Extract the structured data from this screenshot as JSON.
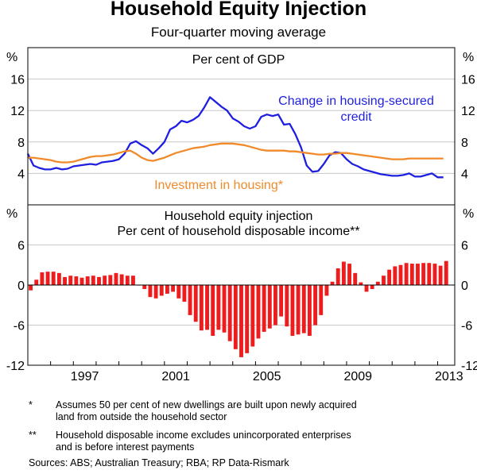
{
  "title": "Household Equity Injection",
  "subtitle": "Four-quarter moving average",
  "chart_data": [
    {
      "type": "line",
      "panel_title": "Per cent of GDP",
      "unit_label": "%",
      "ylim": [
        0,
        20
      ],
      "yticks": [
        4,
        8,
        12,
        16
      ],
      "x_range": [
        1995.0,
        2013.75
      ],
      "series": [
        {
          "name": "Change in housing-secured credit",
          "label_lines": [
            "Change in housing-secured",
            "credit"
          ],
          "color": "#1f1fe0",
          "x": [
            1995.0,
            1995.25,
            1995.5,
            1995.75,
            1996.0,
            1996.25,
            1996.5,
            1996.75,
            1997.0,
            1997.25,
            1997.5,
            1997.75,
            1998.0,
            1998.25,
            1998.5,
            1998.75,
            1999.0,
            1999.25,
            1999.5,
            1999.75,
            2000.0,
            2000.25,
            2000.5,
            2000.75,
            2001.0,
            2001.25,
            2001.5,
            2001.75,
            2002.0,
            2002.25,
            2002.5,
            2002.75,
            2003.0,
            2003.25,
            2003.5,
            2003.75,
            2004.0,
            2004.25,
            2004.5,
            2004.75,
            2005.0,
            2005.25,
            2005.5,
            2005.75,
            2006.0,
            2006.25,
            2006.5,
            2006.75,
            2007.0,
            2007.25,
            2007.5,
            2007.75,
            2008.0,
            2008.25,
            2008.5,
            2008.75,
            2009.0,
            2009.25,
            2009.5,
            2009.75,
            2010.0,
            2010.25,
            2010.5,
            2010.75,
            2011.0,
            2011.25,
            2011.5,
            2011.75,
            2012.0,
            2012.25,
            2012.5,
            2012.75,
            2013.0,
            2013.25
          ],
          "values": [
            6.5,
            5.0,
            4.7,
            4.5,
            4.5,
            4.7,
            4.5,
            4.6,
            4.9,
            5.0,
            5.1,
            5.2,
            5.1,
            5.4,
            5.5,
            5.6,
            5.8,
            6.5,
            7.8,
            8.1,
            7.6,
            7.2,
            6.5,
            7.2,
            8.0,
            9.6,
            10.0,
            10.7,
            10.5,
            10.8,
            11.3,
            12.4,
            13.7,
            13.1,
            12.5,
            12.0,
            11.0,
            10.6,
            10.0,
            9.7,
            10.0,
            11.2,
            11.5,
            11.3,
            11.5,
            10.2,
            10.3,
            9.0,
            7.3,
            5.0,
            4.2,
            4.3,
            5.2,
            6.3,
            6.7,
            6.6,
            5.8,
            5.2,
            4.9,
            4.5,
            4.3,
            4.1,
            3.9,
            3.8,
            3.7,
            3.7,
            3.8,
            4.0,
            3.6,
            3.6,
            3.8,
            4.0,
            3.5,
            3.5
          ]
        },
        {
          "name": "Investment in housing*",
          "label_lines": [
            "Investment in housing*"
          ],
          "color": "#f08a2a",
          "x": [
            1995.0,
            1995.25,
            1995.5,
            1995.75,
            1996.0,
            1996.25,
            1996.5,
            1996.75,
            1997.0,
            1997.25,
            1997.5,
            1997.75,
            1998.0,
            1998.25,
            1998.5,
            1998.75,
            1999.0,
            1999.25,
            1999.5,
            1999.75,
            2000.0,
            2000.25,
            2000.5,
            2000.75,
            2001.0,
            2001.25,
            2001.5,
            2001.75,
            2002.0,
            2002.25,
            2002.5,
            2002.75,
            2003.0,
            2003.25,
            2003.5,
            2003.75,
            2004.0,
            2004.25,
            2004.5,
            2004.75,
            2005.0,
            2005.25,
            2005.5,
            2005.75,
            2006.0,
            2006.25,
            2006.5,
            2006.75,
            2007.0,
            2007.25,
            2007.5,
            2007.75,
            2008.0,
            2008.25,
            2008.5,
            2008.75,
            2009.0,
            2009.25,
            2009.5,
            2009.75,
            2010.0,
            2010.25,
            2010.5,
            2010.75,
            2011.0,
            2011.25,
            2011.5,
            2011.75,
            2012.0,
            2012.25,
            2012.5,
            2012.75,
            2013.0,
            2013.25
          ],
          "values": [
            6.0,
            6.0,
            5.9,
            5.8,
            5.7,
            5.5,
            5.4,
            5.4,
            5.5,
            5.7,
            5.9,
            6.1,
            6.2,
            6.2,
            6.3,
            6.4,
            6.6,
            6.8,
            6.9,
            6.5,
            6.0,
            5.7,
            5.6,
            5.8,
            6.0,
            6.3,
            6.6,
            6.8,
            7.0,
            7.2,
            7.3,
            7.4,
            7.6,
            7.7,
            7.8,
            7.8,
            7.8,
            7.7,
            7.6,
            7.4,
            7.2,
            7.0,
            6.9,
            6.9,
            6.9,
            6.9,
            6.8,
            6.8,
            6.7,
            6.6,
            6.5,
            6.4,
            6.4,
            6.5,
            6.5,
            6.6,
            6.6,
            6.5,
            6.4,
            6.3,
            6.2,
            6.1,
            6.0,
            5.9,
            5.8,
            5.8,
            5.8,
            5.9,
            5.9,
            5.9,
            5.9,
            5.9,
            5.9,
            5.9
          ]
        }
      ]
    },
    {
      "type": "bar",
      "panel_title": "Household equity injection",
      "panel_subtitle": "Per cent of household disposable income**",
      "unit_label": "%",
      "ylim": [
        -12,
        12
      ],
      "yticks": [
        -12,
        -6,
        0,
        6
      ],
      "ytick_labels": [
        "-12",
        "-6",
        "0",
        "6"
      ],
      "x_range": [
        1995.0,
        2013.75
      ],
      "xticks": [
        "1997",
        "2001",
        "2005",
        "2009",
        "2013"
      ],
      "color": "#ee1c1c",
      "x": [
        1995.0,
        1995.25,
        1995.5,
        1995.75,
        1996.0,
        1996.25,
        1996.5,
        1996.75,
        1997.0,
        1997.25,
        1997.5,
        1997.75,
        1998.0,
        1998.25,
        1998.5,
        1998.75,
        1999.0,
        1999.25,
        1999.5,
        1999.75,
        2000.0,
        2000.25,
        2000.5,
        2000.75,
        2001.0,
        2001.25,
        2001.5,
        2001.75,
        2002.0,
        2002.25,
        2002.5,
        2002.75,
        2003.0,
        2003.25,
        2003.5,
        2003.75,
        2004.0,
        2004.25,
        2004.5,
        2004.75,
        2005.0,
        2005.25,
        2005.5,
        2005.75,
        2006.0,
        2006.25,
        2006.5,
        2006.75,
        2007.0,
        2007.25,
        2007.5,
        2007.75,
        2008.0,
        2008.25,
        2008.5,
        2008.75,
        2009.0,
        2009.25,
        2009.5,
        2009.75,
        2010.0,
        2010.25,
        2010.5,
        2010.75,
        2011.0,
        2011.25,
        2011.5,
        2011.75,
        2012.0,
        2012.25,
        2012.5,
        2012.75,
        2013.0,
        2013.25
      ],
      "values": [
        -0.8,
        0.8,
        1.9,
        2.0,
        2.0,
        1.8,
        1.2,
        1.4,
        1.3,
        1.1,
        1.3,
        1.4,
        1.2,
        1.4,
        1.5,
        1.8,
        1.6,
        1.4,
        1.4,
        0.0,
        -0.6,
        -1.8,
        -2.0,
        -1.6,
        -1.3,
        -1.0,
        -2.0,
        -2.5,
        -4.5,
        -5.5,
        -6.8,
        -6.7,
        -7.6,
        -6.7,
        -7.1,
        -8.4,
        -9.6,
        -10.8,
        -10.2,
        -9.2,
        -8.0,
        -7.0,
        -6.5,
        -6.0,
        -4.7,
        -6.2,
        -7.6,
        -7.4,
        -7.2,
        -7.6,
        -6.0,
        -4.5,
        -1.6,
        0.5,
        2.5,
        3.5,
        3.2,
        1.8,
        0.4,
        -1.0,
        -0.6,
        0.5,
        1.4,
        2.3,
        2.8,
        3.0,
        3.3,
        3.2,
        3.2,
        3.3,
        3.3,
        3.2,
        2.9,
        3.6
      ]
    }
  ],
  "footnotes": [
    {
      "marker": "*",
      "lines": [
        "Assumes 50 per cent of new dwellings are built upon newly acquired",
        "land from outside the household sector"
      ]
    },
    {
      "marker": "**",
      "lines": [
        "Household disposable income excludes unincorporated enterprises",
        "and is before interest payments"
      ]
    }
  ],
  "sources": "Sources: ABS; Australian Treasury; RBA; RP Data-Rismark"
}
